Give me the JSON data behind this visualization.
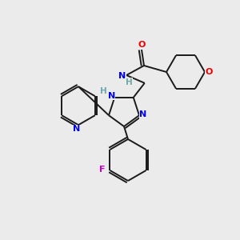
{
  "bg_color": "#ebebeb",
  "bond_color": "#1a1a1a",
  "atom_colors": {
    "N": "#0000ee",
    "O": "#ee0000",
    "F": "#cc00cc",
    "C": "#1a1a1a",
    "H": "#6fa8a8"
  },
  "lw": 1.4,
  "fontsize": 7.5,
  "sep": 2.2
}
